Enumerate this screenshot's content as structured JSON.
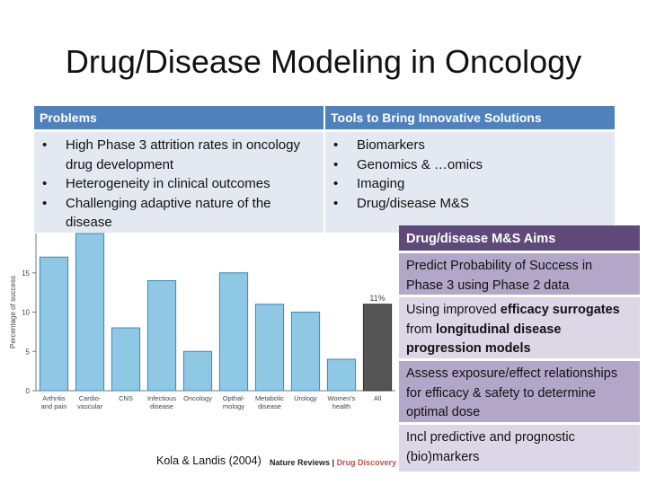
{
  "slide": {
    "title": "Drug/Disease Modeling in Oncology"
  },
  "table": {
    "left_header": "Problems",
    "right_header": "Tools to Bring Innovative Solutions",
    "problems": [
      "High Phase 3 attrition rates in oncology drug development",
      "Heterogeneity in clinical outcomes",
      "Challenging adaptive nature of the disease"
    ],
    "tools": [
      "Biomarkers",
      "Genomics & …omics",
      "Imaging",
      "Drug/disease M&S"
    ]
  },
  "aims": {
    "header": "Drug/disease M&S Aims",
    "items": [
      {
        "segments": [
          {
            "t": "Predict Probability of Success in Phase 3 using Phase 2 data",
            "b": false
          }
        ]
      },
      {
        "segments": [
          {
            "t": "Using improved ",
            "b": false
          },
          {
            "t": "efficacy surrogates",
            "b": true
          },
          {
            "t": " from ",
            "b": false
          },
          {
            "t": "longitudinal disease progression models",
            "b": true
          }
        ]
      },
      {
        "segments": [
          {
            "t": "Assess exposure/effect relationships for efficacy & safety to determine optimal dose",
            "b": false
          }
        ]
      },
      {
        "segments": [
          {
            "t": "Incl predictive and prognostic (bio)markers",
            "b": false
          }
        ]
      }
    ]
  },
  "citation": {
    "text": "Kola & Landis (2004)",
    "journal_prefix": "Nature Reviews | ",
    "journal_suffix": "Drug Discovery"
  },
  "chart_data": {
    "type": "bar",
    "ylabel": "Percentage of success",
    "ylim": [
      0,
      20
    ],
    "yticks": [
      0,
      5,
      10,
      15
    ],
    "categories": [
      [
        "Arthritis",
        "and pain"
      ],
      [
        "Cardio-",
        "vascular"
      ],
      [
        "CNS"
      ],
      [
        "Infectious",
        "disease"
      ],
      [
        "Oncology"
      ],
      [
        "Opthal-",
        "mology"
      ],
      [
        "Metabolic",
        "disease"
      ],
      [
        "Urology"
      ],
      [
        "Women's",
        "health"
      ],
      [
        "All"
      ]
    ],
    "values": [
      17,
      20,
      8,
      14,
      5,
      15,
      11,
      10,
      4,
      11
    ],
    "annotation": "11%",
    "colors": {
      "bar_fill": "#8fc8e4",
      "bar_stroke": "#3a89b8",
      "all_bar": "#555555",
      "axis": "#777777"
    }
  }
}
